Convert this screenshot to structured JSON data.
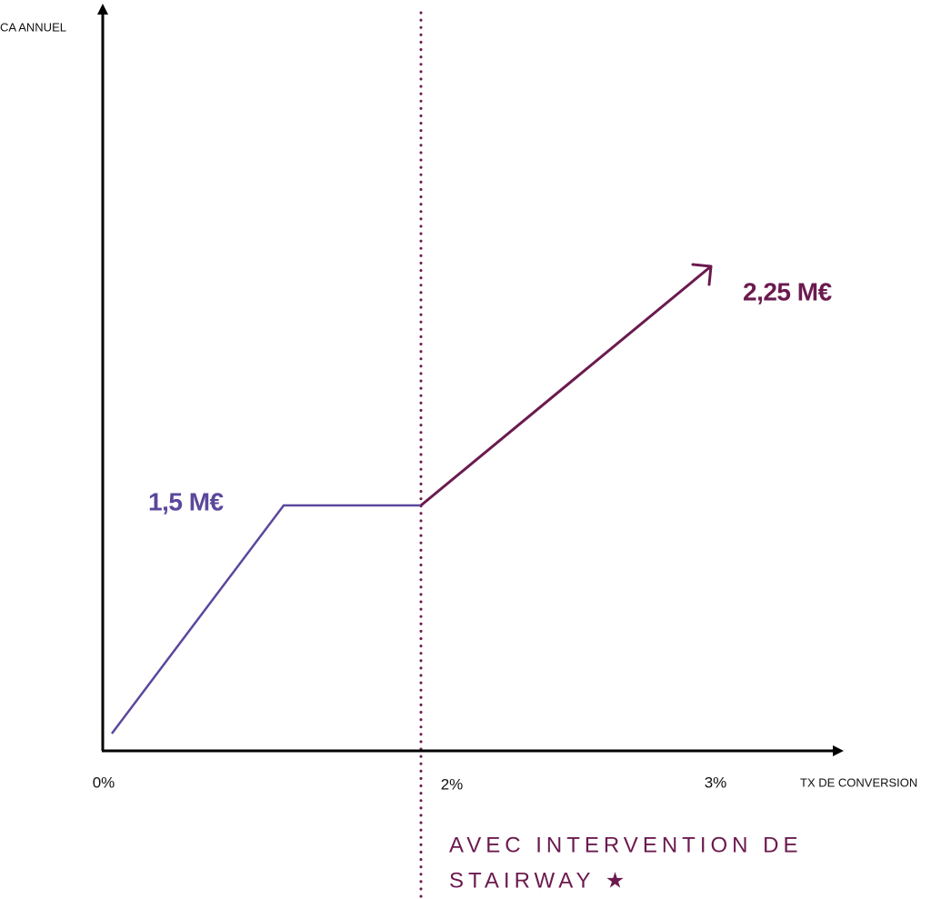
{
  "axes": {
    "y_label": "CA ANNUEL",
    "x_label": "TX DE CONVERSION",
    "x_ticks": [
      "0%",
      "2%",
      "3%"
    ]
  },
  "annotations": {
    "before": "1,5 M€",
    "after": "2,25 M€"
  },
  "note": {
    "lines": [
      "AVEC INTERVENTION DE",
      "STAIRWAY ★"
    ]
  }
}
